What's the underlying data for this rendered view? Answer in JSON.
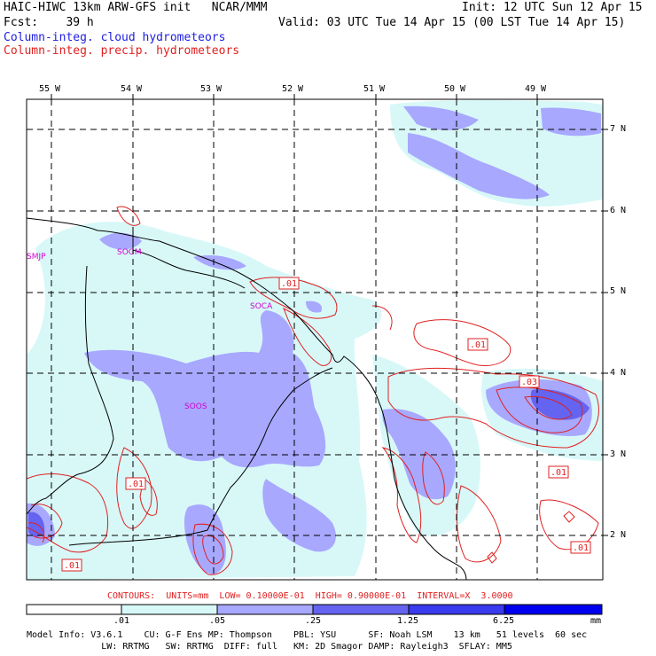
{
  "header": {
    "title": "HAIC-HIWC 13km ARW-GFS init   NCAR/MMM",
    "fcst": "Fcst:    39 h",
    "init": "Init: 12 UTC Sun 12 Apr 15",
    "valid": "Valid: 03 UTC Tue 14 Apr 15 (00 LST Tue 14 Apr 15)",
    "field_cloud": "Column-integ. cloud hydrometeors",
    "field_precip": "Column-integ. precip. hydrometeors",
    "color_cloud": "#2020e0",
    "color_precip": "#e02020"
  },
  "map": {
    "lon_labels": [
      "55 W",
      "54 W",
      "53 W",
      "52 W",
      "51 W",
      "50 W",
      "49 W"
    ],
    "lat_labels": [
      "7 N",
      "6 N",
      "5 N",
      "4 N",
      "3 N",
      "2 N"
    ],
    "stations": [
      "SMJP",
      "SOGM",
      "SOCA",
      "SOOS"
    ],
    "station_color": "#d000d0",
    "contour_labels": [
      ".01",
      ".01",
      ".03",
      ".01",
      ".01",
      ".01",
      ".01"
    ],
    "shade_colors": [
      "#d8f8f8",
      "#a8a8ff",
      "#6464f0"
    ]
  },
  "contours_line": "CONTOURS:  UNITS=mm  LOW= 0.10000E-01  HIGH= 0.90000E-01  INTERVAL=X  3.0000",
  "colorbar": {
    "ticks": [
      ".01",
      ".05",
      ".25",
      "1.25",
      "6.25"
    ],
    "unit": "mm",
    "colors": [
      "#ffffff",
      "#d8f8f8",
      "#a8a8ff",
      "#6464f0",
      "#3a3aee",
      "#0000f0"
    ]
  },
  "footer": {
    "line1": "Model Info: V3.6.1    CU: G-F Ens MP: Thompson    PBL: YSU      SF: Noah LSM    13 km   51 levels  60 sec",
    "line2": "              LW: RRTMG   SW: RRTMG  DIFF: full   KM: 2D Smagor DAMP: Rayleigh3  SFLAY: MM5"
  }
}
